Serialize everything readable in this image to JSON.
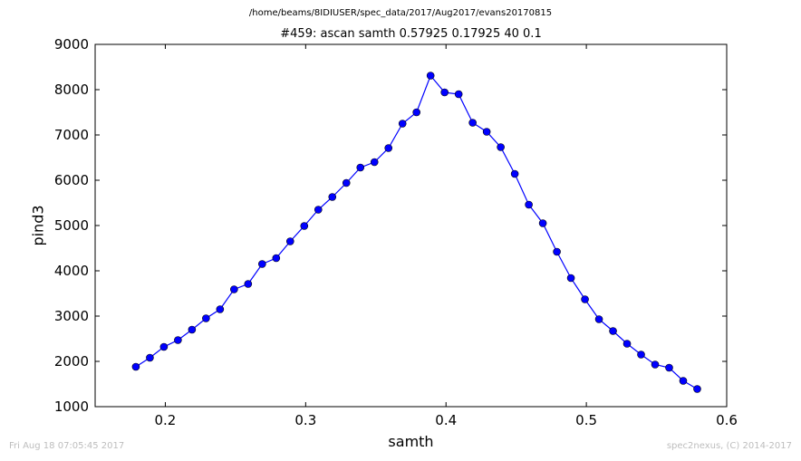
{
  "figure": {
    "path_title": "/home/beams/8IDIUSER/spec_data/2017/Aug2017/evans20170815",
    "scan_title": "#459: ascan  samth 0.57925 0.17925  40 0.1",
    "footer_left": "Fri Aug 18 07:05:45 2017",
    "footer_right": "spec2nexus, (C) 2014-2017"
  },
  "chart_data": {
    "type": "line",
    "title": "#459: ascan  samth 0.57925 0.17925  40 0.1",
    "xlabel": "samth",
    "ylabel": "pind3",
    "xlim": [
      0.15,
      0.6
    ],
    "ylim": [
      1000,
      9000
    ],
    "xticks": [
      "0.2",
      "0.3",
      "0.4",
      "0.5",
      "0.6"
    ],
    "yticks": [
      "1000",
      "2000",
      "3000",
      "4000",
      "5000",
      "6000",
      "7000",
      "8000",
      "9000"
    ],
    "grid": false,
    "line_color": "#0000ff",
    "marker": "circle",
    "series": [
      {
        "x": [
          0.179,
          0.189,
          0.199,
          0.209,
          0.219,
          0.229,
          0.239,
          0.249,
          0.259,
          0.269,
          0.279,
          0.289,
          0.299,
          0.309,
          0.319,
          0.329,
          0.339,
          0.349,
          0.359,
          0.369,
          0.379,
          0.389,
          0.399,
          0.409,
          0.419,
          0.429,
          0.439,
          0.449,
          0.459,
          0.469,
          0.479,
          0.489,
          0.499,
          0.509,
          0.519,
          0.529,
          0.539,
          0.549,
          0.559,
          0.569,
          0.579
        ],
        "y": [
          1880,
          2080,
          2320,
          2470,
          2700,
          2950,
          3150,
          3590,
          3710,
          4150,
          4280,
          4650,
          4990,
          5350,
          5630,
          5940,
          6280,
          6400,
          6710,
          7250,
          7500,
          8310,
          7940,
          7900,
          7270,
          7070,
          6730,
          6140,
          5460,
          5050,
          4420,
          3840,
          3370,
          2930,
          2670,
          2390,
          2150,
          1930,
          1860,
          1570,
          1390
        ]
      }
    ]
  }
}
